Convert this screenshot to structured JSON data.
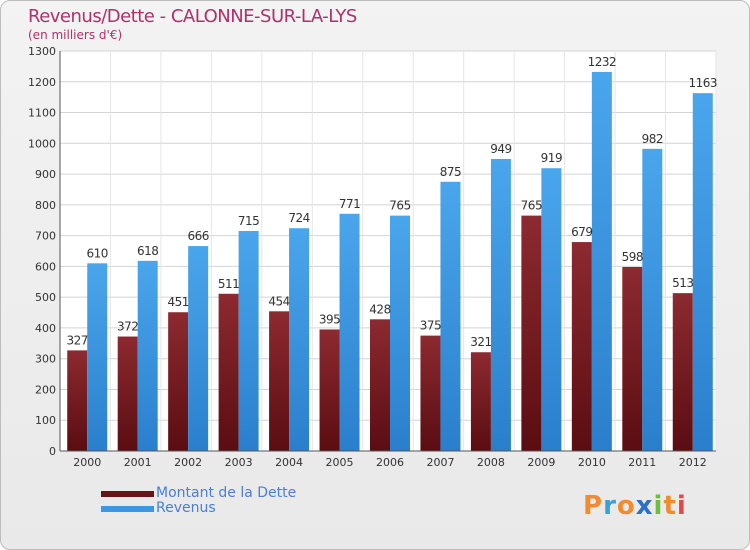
{
  "header": {
    "title": "Revenus/Dette - CALONNE-SUR-LA-LYS",
    "subtitle": "(en milliers d'€)"
  },
  "logo": {
    "text": "Proxiti",
    "letters": [
      "P",
      "r",
      "o",
      "x",
      "i",
      "t",
      "i"
    ],
    "colors": [
      "#f28a2e",
      "#3aa0d8",
      "#f28a2e",
      "#2e6fc9",
      "#6cbf3c",
      "#f28a2e",
      "#e24a4a"
    ]
  },
  "colors": {
    "dette": "#7a1c22",
    "revenus": "#3d97e0",
    "title": "#b0306a",
    "legend_text": "#4a7fd4"
  },
  "chart_data": {
    "type": "bar",
    "title": "Revenus/Dette - CALONNE-SUR-LA-LYS",
    "subtitle": "(en milliers d'€)",
    "categories": [
      "2000",
      "2001",
      "2002",
      "2003",
      "2004",
      "2005",
      "2006",
      "2007",
      "2008",
      "2009",
      "2010",
      "2011",
      "2012"
    ],
    "series": [
      {
        "name": "Montant de la Dette",
        "color": "#7a1c22",
        "values": [
          327,
          372,
          451,
          511,
          454,
          395,
          428,
          375,
          321,
          765,
          679,
          598,
          513
        ]
      },
      {
        "name": "Revenus",
        "color": "#3d97e0",
        "values": [
          610,
          618,
          666,
          715,
          724,
          771,
          765,
          875,
          949,
          919,
          1232,
          982,
          1163
        ]
      }
    ],
    "ylim": [
      0,
      1300
    ],
    "yticks": [
      0,
      100,
      200,
      300,
      400,
      500,
      600,
      700,
      800,
      900,
      1000,
      1100,
      1200,
      1300
    ],
    "grid": true,
    "legend_position": "bottom-left"
  }
}
